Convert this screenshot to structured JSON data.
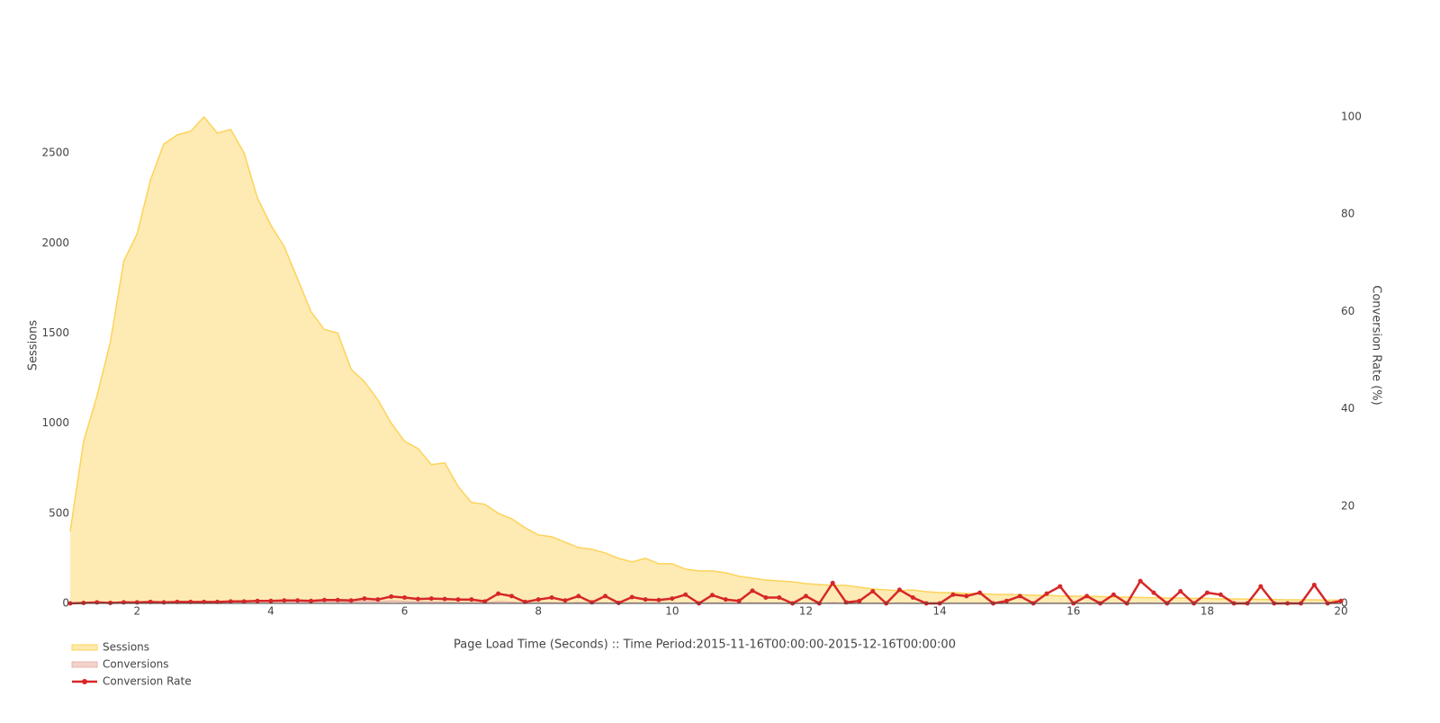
{
  "chart_data": {
    "type": "area-line",
    "x_label": "Page Load Time (Seconds) :: Time Period:2015-11-16T00:00:00-2015-12-16T00:00:00",
    "y_label": "Sessions",
    "y2_label": "Conversion Rate (%)",
    "x": [
      1,
      1.2,
      1.4,
      1.6,
      1.8,
      2,
      2.2,
      2.4,
      2.6,
      2.8,
      3,
      3.2,
      3.4,
      3.6,
      3.8,
      4,
      4.2,
      4.4,
      4.6,
      4.8,
      5,
      5.2,
      5.4,
      5.6,
      5.8,
      6,
      6.2,
      6.4,
      6.6,
      6.8,
      7,
      7.2,
      7.4,
      7.6,
      7.8,
      8,
      8.2,
      8.4,
      8.6,
      8.8,
      9,
      9.2,
      9.4,
      9.6,
      9.8,
      10,
      10.2,
      10.4,
      10.6,
      10.8,
      11,
      11.2,
      11.4,
      11.6,
      11.8,
      12,
      12.2,
      12.4,
      12.6,
      12.8,
      13,
      13.2,
      13.4,
      13.6,
      13.8,
      14,
      14.2,
      14.4,
      14.6,
      14.8,
      15,
      15.2,
      15.4,
      15.6,
      15.8,
      16,
      16.2,
      16.4,
      16.6,
      16.8,
      17,
      17.2,
      17.4,
      17.6,
      17.8,
      18,
      18.2,
      18.4,
      18.6,
      18.8,
      19,
      19.2,
      19.4,
      19.6,
      19.8,
      20
    ],
    "xlim": [
      1,
      20
    ],
    "xticks": [
      2,
      4,
      6,
      8,
      10,
      12,
      14,
      16,
      18,
      20
    ],
    "ylim": [
      0,
      2700
    ],
    "yticks": [
      0,
      500,
      1000,
      1500,
      2000,
      2500
    ],
    "y2lim": [
      0,
      100
    ],
    "y2ticks": [
      0,
      20,
      40,
      60,
      80,
      100
    ],
    "series": [
      {
        "name": "Sessions",
        "kind": "area",
        "color": "#fdd35a",
        "fill": "#fde9ab",
        "values": [
          400,
          900,
          1150,
          1450,
          1900,
          2050,
          2350,
          2550,
          2600,
          2620,
          2700,
          2610,
          2630,
          2500,
          2250,
          2100,
          1980,
          1800,
          1620,
          1520,
          1500,
          1300,
          1230,
          1130,
          1000,
          900,
          860,
          770,
          780,
          650,
          560,
          550,
          500,
          470,
          420,
          380,
          370,
          340,
          310,
          300,
          280,
          250,
          230,
          250,
          220,
          220,
          190,
          180,
          180,
          170,
          150,
          140,
          130,
          125,
          120,
          110,
          105,
          100,
          100,
          90,
          80,
          75,
          70,
          75,
          65,
          60,
          60,
          55,
          55,
          50,
          50,
          48,
          45,
          45,
          42,
          40,
          40,
          38,
          35,
          35,
          33,
          32,
          30,
          30,
          28,
          28,
          25,
          25,
          24,
          22,
          22,
          20,
          20,
          20,
          18,
          18
        ]
      },
      {
        "name": "Conversions",
        "kind": "area",
        "color": "#e8b5ab",
        "fill": "#f2d3cc",
        "values": [
          0,
          1,
          2,
          1,
          4,
          4,
          7,
          5,
          8,
          8,
          8,
          8,
          11,
          10,
          11,
          11,
          12,
          11,
          8,
          11,
          11,
          8,
          12,
          9,
          14,
          11,
          8,
          8,
          7,
          5,
          4,
          2,
          10,
          7,
          1,
          3,
          4,
          2,
          5,
          1,
          4,
          0,
          3,
          2,
          2,
          2,
          3,
          0,
          3,
          1,
          1,
          4,
          2,
          2,
          0,
          2,
          0,
          4,
          0,
          0,
          2,
          0,
          2,
          1,
          0,
          0,
          1,
          1,
          1,
          0,
          0,
          1,
          0,
          1,
          1,
          0,
          1,
          0,
          1,
          0,
          2,
          1,
          0,
          1,
          0,
          1,
          0,
          0,
          0,
          1,
          0,
          0,
          0,
          1,
          0,
          0
        ]
      },
      {
        "name": "Conversion Rate",
        "kind": "line",
        "axis": "y2",
        "color": "#d62728",
        "values": [
          0,
          0.1,
          0.2,
          0.1,
          0.2,
          0.2,
          0.3,
          0.2,
          0.3,
          0.3,
          0.3,
          0.3,
          0.4,
          0.4,
          0.5,
          0.5,
          0.6,
          0.6,
          0.5,
          0.7,
          0.7,
          0.6,
          1.0,
          0.8,
          1.4,
          1.2,
          0.9,
          1.0,
          0.9,
          0.8,
          0.8,
          0.4,
          2.0,
          1.5,
          0.3,
          0.8,
          1.2,
          0.6,
          1.5,
          0.2,
          1.5,
          0.1,
          1.3,
          0.8,
          0.7,
          1.0,
          1.8,
          0,
          1.7,
          0.8,
          0.5,
          2.6,
          1.2,
          1.2,
          0,
          1.5,
          0,
          4.2,
          0.2,
          0.5,
          2.5,
          0,
          2.8,
          1.2,
          0,
          0,
          1.8,
          1.5,
          2.2,
          0,
          0.5,
          1.5,
          0,
          2.0,
          3.5,
          0,
          1.5,
          0,
          1.8,
          0,
          4.6,
          2.2,
          0,
          2.5,
          0,
          2.2,
          1.8,
          0,
          0,
          3.5,
          0,
          0,
          0,
          3.8,
          0,
          0.5
        ]
      }
    ]
  }
}
